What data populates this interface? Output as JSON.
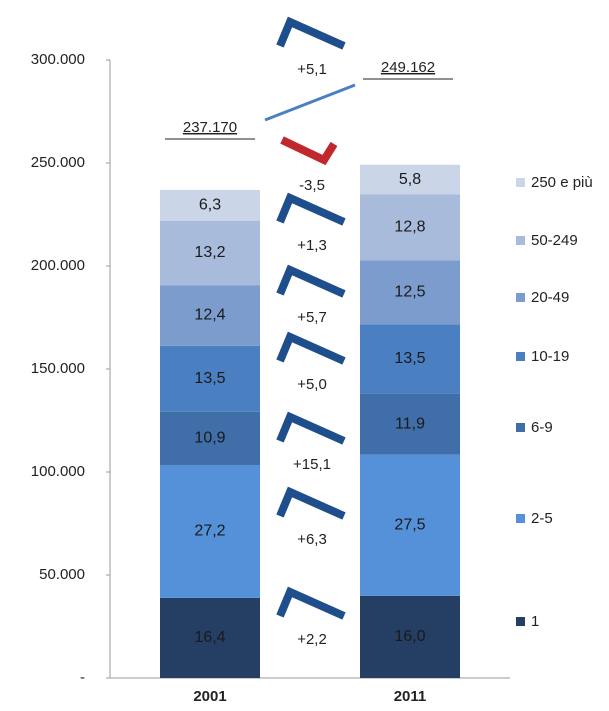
{
  "chart_data": {
    "type": "stacked_bar",
    "categories": [
      "2001",
      "2011"
    ],
    "series": [
      {
        "name": "1",
        "color": "#243e64",
        "values": [
          16.4,
          16.0
        ],
        "value_labels": [
          "16,4",
          "16,0"
        ]
      },
      {
        "name": "2-5",
        "color": "#5591d9",
        "values": [
          27.2,
          27.5
        ],
        "value_labels": [
          "27,2",
          "27,5"
        ]
      },
      {
        "name": "6-9",
        "color": "#3f6ea8",
        "values": [
          10.9,
          11.9
        ],
        "value_labels": [
          "10,9",
          "11,9"
        ]
      },
      {
        "name": "10-19",
        "color": "#4a7fc1",
        "values": [
          13.5,
          13.5
        ],
        "value_labels": [
          "13,5",
          "13,5"
        ]
      },
      {
        "name": "20-49",
        "color": "#7b9ccc",
        "values": [
          12.4,
          12.5
        ],
        "value_labels": [
          "12,4",
          "12,5"
        ]
      },
      {
        "name": "50-249",
        "color": "#a9bbdb",
        "values": [
          13.2,
          12.8
        ],
        "value_labels": [
          "13,2",
          "12,8"
        ]
      },
      {
        "name": "250 e più",
        "color": "#cad5e8",
        "values": [
          6.3,
          5.8
        ],
        "value_labels": [
          "6,3",
          "5,8"
        ]
      }
    ],
    "totals": {
      "values": [
        237170,
        249162
      ],
      "value_labels": [
        "237.170",
        "249.162"
      ]
    },
    "changes": {
      "values": [
        2.2,
        6.3,
        15.1,
        5.0,
        5.7,
        1.3,
        -3.5
      ],
      "value_labels": [
        "+2,2",
        "+6,3",
        "+15,1",
        "+5,0",
        "+5,7",
        "+1,3",
        "-3,5"
      ]
    },
    "total_change": {
      "value": 5.1,
      "label": "+5,1"
    },
    "ylim": [
      0,
      300000
    ],
    "yticks": [
      {
        "value": 0,
        "label": "-"
      },
      {
        "value": 50000,
        "label": "50.000"
      },
      {
        "value": 100000,
        "label": "100.000"
      },
      {
        "value": 150000,
        "label": "150.000"
      },
      {
        "value": 200000,
        "label": "200.000"
      },
      {
        "value": 250000,
        "label": "250.000"
      },
      {
        "value": 300000,
        "label": "300.000"
      }
    ],
    "positive_color": "#1f4e8c",
    "negative_color": "#c0282d"
  }
}
